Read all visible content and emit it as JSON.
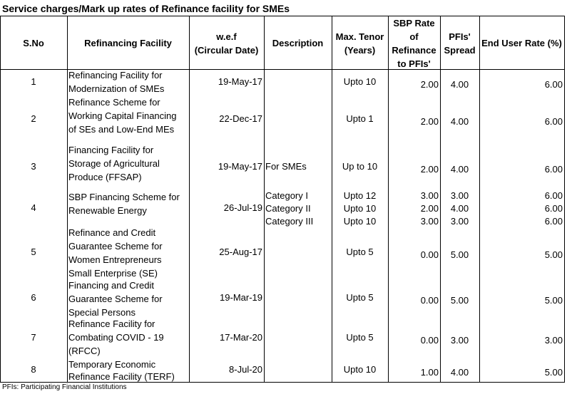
{
  "title": "Service charges/Mark up rates of Refinance facility for SMEs",
  "columns": [
    {
      "key": "sno",
      "label": "S.No"
    },
    {
      "key": "facility",
      "label": "Refinancing Facility"
    },
    {
      "key": "wef",
      "label": "w.e.f\n(Circular Date)"
    },
    {
      "key": "description",
      "label": "Description"
    },
    {
      "key": "tenor",
      "label": "Max. Tenor\n(Years)"
    },
    {
      "key": "sbp_rate",
      "label": "SBP Rate\nof\nRefinance\nto PFIs'"
    },
    {
      "key": "spread",
      "label": "PFIs'\nSpread"
    },
    {
      "key": "end_rate",
      "label": "End User Rate (%)"
    }
  ],
  "rows": [
    {
      "sno": "1",
      "facility": [
        "Refinancing Facility for",
        "Modernization of SMEs"
      ],
      "wef": "19-May-17",
      "description": [],
      "tenor": [
        "Upto 10"
      ],
      "sbp_rate": [
        "2.00"
      ],
      "spread": [
        "4.00"
      ],
      "end_rate": [
        "6.00"
      ]
    },
    {
      "sno": "2",
      "facility": [
        "Refinance Scheme for",
        "Working Capital Financing",
        "of SEs and Low-End MEs"
      ],
      "wef": "22-Dec-17",
      "description": [],
      "tenor": [
        "Upto 1"
      ],
      "sbp_rate": [
        "2.00"
      ],
      "spread": [
        "4.00"
      ],
      "end_rate": [
        "6.00"
      ]
    },
    {
      "sno": "3",
      "facility": [
        "Financing Facility for",
        "Storage of Agricultural",
        "Produce (FFSAP)"
      ],
      "wef": "19-May-17",
      "description": [
        "For SMEs"
      ],
      "tenor": [
        "Up to 10"
      ],
      "sbp_rate": [
        "2.00"
      ],
      "spread": [
        "4.00"
      ],
      "end_rate": [
        "6.00"
      ]
    },
    {
      "sno": "4",
      "facility": [
        "SBP Financing Scheme for",
        "Renewable Energy"
      ],
      "wef": "26-Jul-19",
      "description": [
        "Category I",
        "Category II",
        "Category III"
      ],
      "tenor": [
        "Upto 12",
        "Upto 10",
        "Upto 10"
      ],
      "sbp_rate": [
        "3.00",
        "2.00",
        "3.00"
      ],
      "spread": [
        "3.00",
        "4.00",
        "3.00"
      ],
      "end_rate": [
        "6.00",
        "6.00",
        "6.00"
      ]
    },
    {
      "sno": "5",
      "facility": [
        "Refinance and Credit",
        "Guarantee Scheme for",
        "Women Entrepreneurs",
        "Small Enterprise (SE)"
      ],
      "wef": "25-Aug-17",
      "description": [],
      "tenor": [
        "Upto 5"
      ],
      "sbp_rate": [
        "0.00"
      ],
      "spread": [
        "5.00"
      ],
      "end_rate": [
        "5.00"
      ]
    },
    {
      "sno": "6",
      "facility": [
        "Financing and Credit",
        "Guarantee Scheme for",
        "Special Persons"
      ],
      "wef": "19-Mar-19",
      "description": [],
      "tenor": [
        "Upto 5"
      ],
      "sbp_rate": [
        "0.00"
      ],
      "spread": [
        "5.00"
      ],
      "end_rate": [
        "5.00"
      ]
    },
    {
      "sno": "7",
      "facility": [
        "Refinance Facility for",
        "Combating COVID - 19",
        "(RFCC)"
      ],
      "wef": "17-Mar-20",
      "description": [],
      "tenor": [
        "Upto 5"
      ],
      "sbp_rate": [
        "0.00"
      ],
      "spread": [
        "3.00"
      ],
      "end_rate": [
        "3.00"
      ]
    },
    {
      "sno": "8",
      "facility": [
        "Temporary Economic",
        "Refinance Facility (TERF)"
      ],
      "wef": "8-Jul-20",
      "description": [],
      "tenor": [
        "Upto 10"
      ],
      "sbp_rate": [
        "1.00"
      ],
      "spread": [
        "4.00"
      ],
      "end_rate": [
        "5.00"
      ]
    }
  ],
  "footnote": "PFIs: Participating Financial Institutions"
}
